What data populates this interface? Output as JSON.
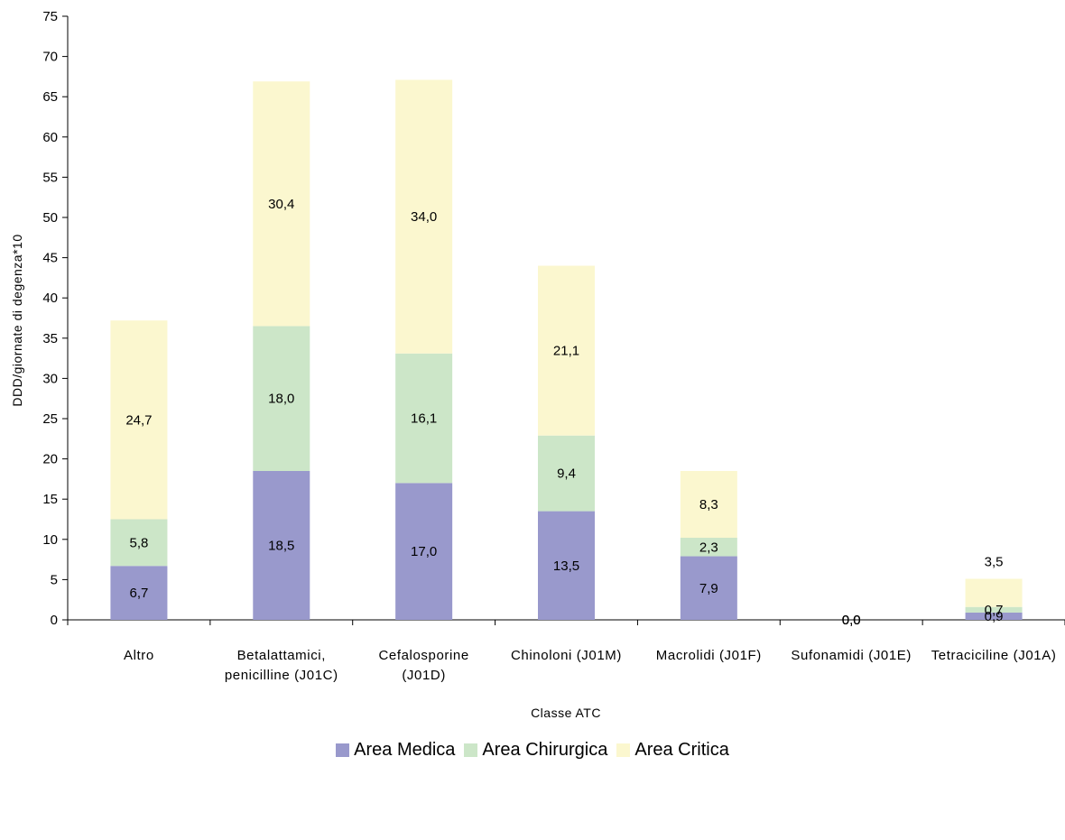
{
  "chart_data": {
    "type": "bar",
    "stacked": true,
    "categories": [
      [
        "Altro"
      ],
      [
        "Betalattamici,",
        "penicilline (J01C)"
      ],
      [
        "Cefalosporine",
        "(J01D)"
      ],
      [
        "Chinoloni (J01M)"
      ],
      [
        "Macrolidi (J01F)"
      ],
      [
        "Sufonamidi (J01E)"
      ],
      [
        "Tetraciciline (J01A)"
      ]
    ],
    "series": [
      {
        "name": "Area Medica",
        "color": "#9999cc",
        "values": [
          6.7,
          18.5,
          17.0,
          13.5,
          7.9,
          0.0,
          0.9
        ],
        "labels": [
          "6,7",
          "18,5",
          "17,0",
          "13,5",
          "7,9",
          "0,0",
          "0,9"
        ]
      },
      {
        "name": "Area Chirurgica",
        "color": "#cce6c8",
        "values": [
          5.8,
          18.0,
          16.1,
          9.4,
          2.3,
          0.0,
          0.7
        ],
        "labels": [
          "5,8",
          "18,0",
          "16,1",
          "9,4",
          "2,3",
          "0,0",
          "0,7"
        ]
      },
      {
        "name": "Area Critica",
        "color": "#fbf7cf",
        "values": [
          24.7,
          30.4,
          34.0,
          21.1,
          8.3,
          0.0,
          3.5
        ],
        "labels": [
          "24,7",
          "30,4",
          "34,0",
          "21,1",
          "8,3",
          "0,0",
          "3,5"
        ]
      }
    ],
    "xlabel": "Classe ATC",
    "ylabel": "DDD/giornate di degenza*10",
    "ylim": [
      0,
      75
    ],
    "ytick_step": 5,
    "legend": "bottom",
    "grid": false
  }
}
